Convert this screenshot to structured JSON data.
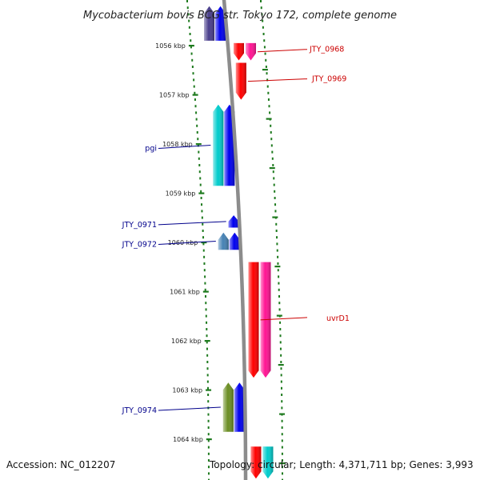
{
  "title": "Mycobacterium bovis BCG str. Tokyo 172, complete genome",
  "footer": {
    "accession": "Accession: NC_012207",
    "topology": "Topology: circular; Length: 4,371,711 bp; Genes: 3,993"
  },
  "ticks": [
    {
      "label": "1056 kbp",
      "kbp": 1056
    },
    {
      "label": "1057 kbp",
      "kbp": 1057
    },
    {
      "label": "1058 kbp",
      "kbp": 1058
    },
    {
      "label": "1059 kbp",
      "kbp": 1059
    },
    {
      "label": "1060 kbp",
      "kbp": 1060
    },
    {
      "label": "1061 kbp",
      "kbp": 1061
    },
    {
      "label": "1062 kbp",
      "kbp": 1062
    },
    {
      "label": "1063 kbp",
      "kbp": 1063
    },
    {
      "label": "1064 kbp",
      "kbp": 1064
    }
  ],
  "colors": {
    "backbone": "#8c8c8c",
    "tick": "#1e7a1e",
    "forward_label": "#cc0000",
    "reverse_label": "#00008b",
    "blue": "#0000ee",
    "red": "#ff0000",
    "pink": "#ff1493",
    "cyan": "#00cccc",
    "steelblue": "#4682b4",
    "olive": "#6b8e23",
    "darkslate": "#483d8b"
  },
  "genes": [
    {
      "strand": "reverse",
      "track": "outer",
      "start": 1055.2,
      "end": 1055.9,
      "color": "darkslate",
      "label": ""
    },
    {
      "strand": "reverse",
      "track": "inner",
      "start": 1055.2,
      "end": 1055.9,
      "color": "blue",
      "label": ""
    },
    {
      "strand": "forward",
      "track": "inner",
      "start": 1055.95,
      "end": 1056.3,
      "color": "red",
      "label": ""
    },
    {
      "strand": "forward",
      "track": "outer",
      "start": 1055.95,
      "end": 1056.3,
      "color": "pink",
      "label": "JTY_0968"
    },
    {
      "strand": "forward",
      "track": "inner",
      "start": 1056.35,
      "end": 1057.1,
      "color": "red",
      "label": "JTY_0969"
    },
    {
      "strand": "reverse",
      "track": "outer",
      "start": 1057.2,
      "end": 1058.85,
      "color": "cyan",
      "label": "pgi"
    },
    {
      "strand": "reverse",
      "track": "inner",
      "start": 1057.2,
      "end": 1058.85,
      "color": "blue",
      "label": ""
    },
    {
      "strand": "reverse",
      "track": "inner",
      "start": 1059.45,
      "end": 1059.7,
      "color": "blue",
      "label": "JTY_0971"
    },
    {
      "strand": "reverse",
      "track": "outer",
      "start": 1059.8,
      "end": 1060.15,
      "color": "steelblue",
      "label": "JTY_0972"
    },
    {
      "strand": "reverse",
      "track": "inner",
      "start": 1059.8,
      "end": 1060.15,
      "color": "blue",
      "label": ""
    },
    {
      "strand": "forward",
      "track": "inner",
      "start": 1060.4,
      "end": 1062.75,
      "color": "red",
      "label": "uvrD1"
    },
    {
      "strand": "forward",
      "track": "outer",
      "start": 1060.4,
      "end": 1062.75,
      "color": "pink",
      "label": ""
    },
    {
      "strand": "reverse",
      "track": "outer",
      "start": 1062.85,
      "end": 1063.85,
      "color": "olive",
      "label": "JTY_0974"
    },
    {
      "strand": "reverse",
      "track": "inner",
      "start": 1062.85,
      "end": 1063.85,
      "color": "blue",
      "label": ""
    },
    {
      "strand": "forward",
      "track": "inner",
      "start": 1064.15,
      "end": 1064.8,
      "color": "red",
      "label": ""
    },
    {
      "strand": "forward",
      "track": "outer",
      "start": 1064.15,
      "end": 1064.8,
      "color": "cyan",
      "label": ""
    }
  ]
}
